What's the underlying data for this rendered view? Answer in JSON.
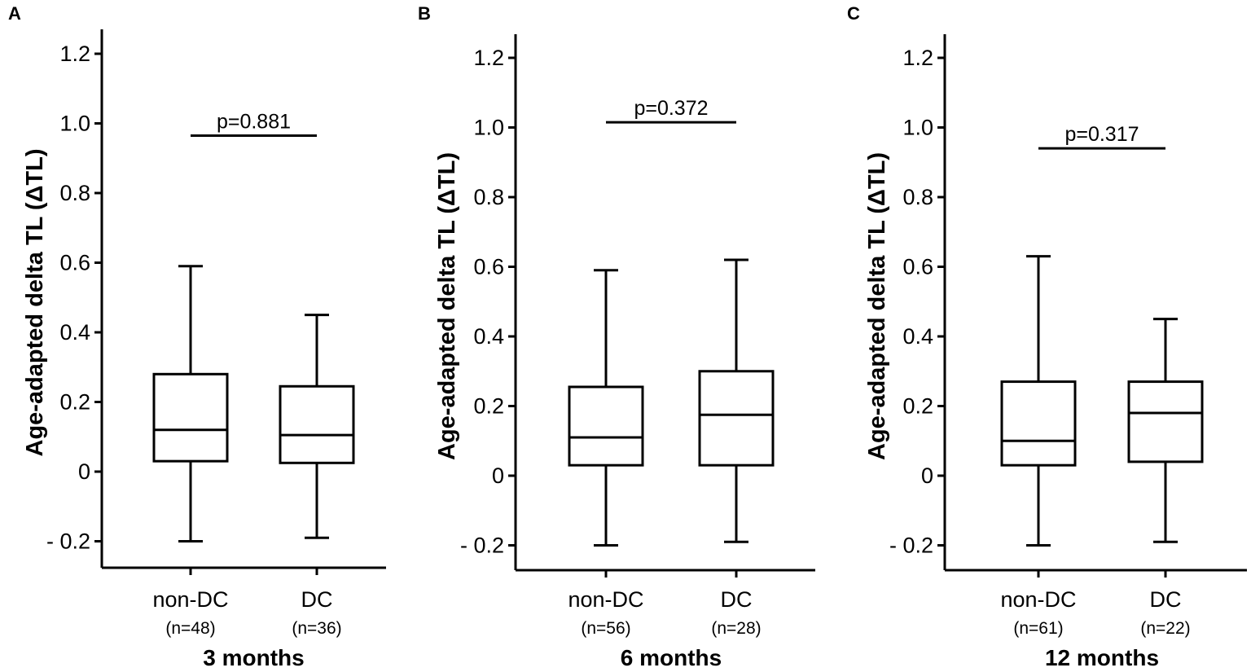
{
  "chart_data": [
    {
      "type": "box",
      "panel": "A",
      "ylabel": "Age-adapted delta TL (ΔTL)",
      "xlabel": "3 months",
      "ylim": [
        -0.25,
        1.27
      ],
      "yticks": [
        -0.2,
        0,
        0.2,
        0.4,
        0.6,
        0.8,
        1.0,
        1.2
      ],
      "ytick_labels": [
        "- 0.2",
        "0",
        "0.2",
        "0.4",
        "0.6",
        "0.8",
        "1.0",
        "1.2"
      ],
      "p_value": "p=0.881",
      "p_bar_y": 0.965,
      "groups": [
        {
          "label": "non-DC",
          "n": "(n=48)",
          "min": -0.2,
          "q1": 0.03,
          "median": 0.12,
          "q3": 0.28,
          "max": 0.59
        },
        {
          "label": "DC",
          "n": "(n=36)",
          "min": -0.19,
          "q1": 0.025,
          "median": 0.105,
          "q3": 0.245,
          "max": 0.45
        }
      ]
    },
    {
      "type": "box",
      "panel": "B",
      "ylabel": "Age-adapted delta TL (ΔTL)",
      "xlabel": "6 months",
      "ylim": [
        -0.25,
        1.27
      ],
      "yticks": [
        -0.2,
        0,
        0.2,
        0.4,
        0.6,
        0.8,
        1.0,
        1.2
      ],
      "ytick_labels": [
        "- 0.2",
        "0",
        "0.2",
        "0.4",
        "0.6",
        "0.8",
        "1.0",
        "1.2"
      ],
      "p_value": "p=0.372",
      "p_bar_y": 1.015,
      "groups": [
        {
          "label": "non-DC",
          "n": "(n=56)",
          "min": -0.2,
          "q1": 0.03,
          "median": 0.11,
          "q3": 0.255,
          "max": 0.59
        },
        {
          "label": "DC",
          "n": "(n=28)",
          "min": -0.19,
          "q1": 0.03,
          "median": 0.175,
          "q3": 0.3,
          "max": 0.62
        }
      ]
    },
    {
      "type": "box",
      "panel": "C",
      "ylabel": "Age-adapted delta TL (ΔTL)",
      "xlabel": "12 months",
      "ylim": [
        -0.25,
        1.27
      ],
      "yticks": [
        -0.2,
        0,
        0.2,
        0.4,
        0.6,
        0.8,
        1.0,
        1.2
      ],
      "ytick_labels": [
        "- 0.2",
        "0",
        "0.2",
        "0.4",
        "0.6",
        "0.8",
        "1.0",
        "1.2"
      ],
      "p_value": "p=0.317",
      "p_bar_y": 0.94,
      "groups": [
        {
          "label": "non-DC",
          "n": "(n=61)",
          "min": -0.2,
          "q1": 0.03,
          "median": 0.1,
          "q3": 0.27,
          "max": 0.63
        },
        {
          "label": "DC",
          "n": "(n=22)",
          "min": -0.19,
          "q1": 0.04,
          "median": 0.18,
          "q3": 0.27,
          "max": 0.45
        }
      ]
    }
  ]
}
